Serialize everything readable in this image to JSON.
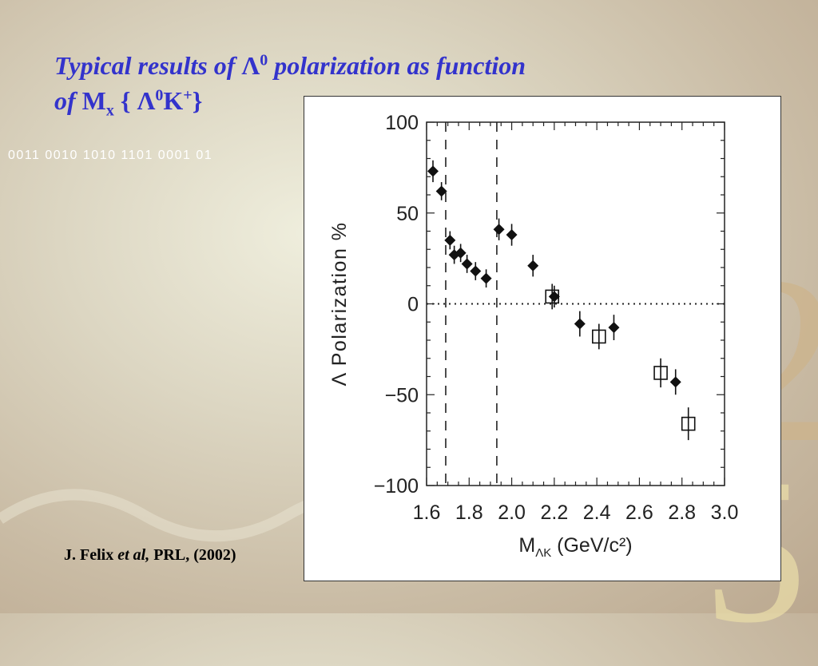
{
  "slide": {
    "title_line1_prefix": "Typical results of ",
    "title_lambda": "Λ",
    "title_lambda_sup": "0",
    "title_line1_suffix": " polarization as function",
    "title_line2_prefix": "of ",
    "title_M": "M",
    "title_M_sub": "x",
    "title_brace_open": " { ",
    "title_lambda2": "Λ",
    "title_lambda2_sup": "0",
    "title_K": "K",
    "title_K_sup": "+",
    "title_brace_close": "}",
    "binary_text": "0011 0010 1010 1101 0001 01",
    "citation_author": "J. Felix ",
    "citation_etal": "et al,",
    "citation_journal": " PRL, (2002)",
    "decor_digit_top": "2",
    "decor_digit_bottom": "5",
    "colors": {
      "title": "#3333cc",
      "decor": "#cdb48c"
    }
  },
  "chart_data": {
    "type": "scatter",
    "title": "",
    "xlabel_main": "M",
    "xlabel_sub": "ΛK",
    "xlabel_units": " (GeV/c²)",
    "ylabel": "Λ Polarization %",
    "xlim": [
      1.6,
      3.0
    ],
    "ylim": [
      -100,
      100
    ],
    "xticks": [
      1.6,
      1.8,
      2.0,
      2.2,
      2.4,
      2.6,
      2.8,
      3.0
    ],
    "xtick_labels": [
      "1.6",
      "1.8",
      "2.0",
      "2.2",
      "2.4",
      "2.6",
      "2.8",
      "3.0"
    ],
    "yticks": [
      100,
      50,
      0,
      -50,
      -100
    ],
    "ytick_labels": [
      "100",
      "50",
      "0",
      "−50",
      "−100"
    ],
    "zero_line": "dotted",
    "vertical_dashed_lines_x": [
      1.69,
      1.93
    ],
    "series": [
      {
        "marker": "filled-diamond",
        "points": [
          {
            "x": 1.63,
            "y": 73,
            "err": 6
          },
          {
            "x": 1.67,
            "y": 62,
            "err": 5
          },
          {
            "x": 1.71,
            "y": 35,
            "err": 5
          },
          {
            "x": 1.73,
            "y": 27,
            "err": 5
          },
          {
            "x": 1.76,
            "y": 28,
            "err": 5
          },
          {
            "x": 1.79,
            "y": 22,
            "err": 5
          },
          {
            "x": 1.83,
            "y": 18,
            "err": 5
          },
          {
            "x": 1.88,
            "y": 14,
            "err": 5
          },
          {
            "x": 1.94,
            "y": 41,
            "err": 6
          },
          {
            "x": 2.0,
            "y": 38,
            "err": 6
          },
          {
            "x": 2.1,
            "y": 21,
            "err": 6
          },
          {
            "x": 2.2,
            "y": 4,
            "err": 6
          },
          {
            "x": 2.32,
            "y": -11,
            "err": 7
          },
          {
            "x": 2.48,
            "y": -13,
            "err": 7
          },
          {
            "x": 2.77,
            "y": -43,
            "err": 7
          }
        ]
      },
      {
        "marker": "open-square",
        "points": [
          {
            "x": 2.19,
            "y": 4,
            "err": 7
          },
          {
            "x": 2.41,
            "y": -18,
            "err": 7
          },
          {
            "x": 2.7,
            "y": -38,
            "err": 8
          },
          {
            "x": 2.83,
            "y": -66,
            "err": 9
          }
        ]
      }
    ]
  }
}
